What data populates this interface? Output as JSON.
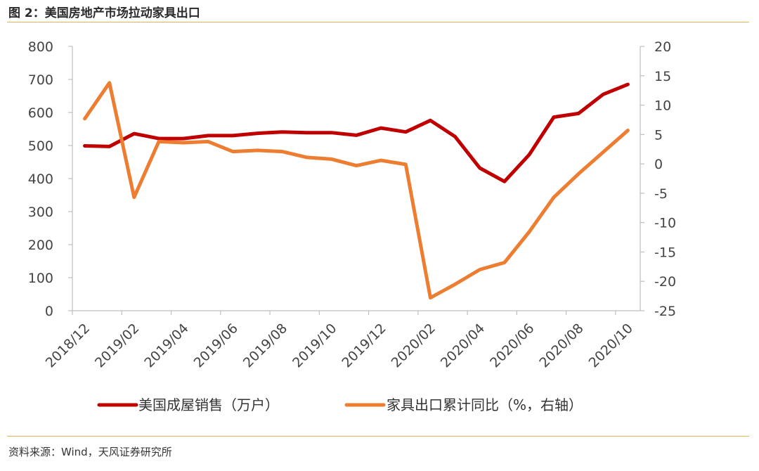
{
  "figure_title": "图 2：美国房地产市场拉动家具出口",
  "source": "资料来源：Wind，天风证券研究所",
  "colors": {
    "series1": "#c00000",
    "series2": "#ed7d31",
    "rule": "#e3b35a"
  },
  "chart_data": {
    "type": "line",
    "title": "图 2：美国房地产市场拉动家具出口",
    "x": [
      "2018/12",
      "2019/01",
      "2019/02",
      "2019/03",
      "2019/04",
      "2019/05",
      "2019/06",
      "2019/07",
      "2019/08",
      "2019/09",
      "2019/10",
      "2019/11",
      "2019/12",
      "2020/01",
      "2020/02",
      "2020/03",
      "2020/04",
      "2020/05",
      "2020/06",
      "2020/07",
      "2020/08",
      "2020/09",
      "2020/10"
    ],
    "x_tick_labels": [
      "2018/12",
      "2019/02",
      "2019/04",
      "2019/06",
      "2019/08",
      "2019/10",
      "2019/12",
      "2020/02",
      "2020/04",
      "2020/06",
      "2020/08",
      "2020/10"
    ],
    "y_left": {
      "range": [
        0,
        800
      ],
      "ticks": [
        "800",
        "700",
        "600",
        "500",
        "400",
        "300",
        "200",
        "100",
        "0"
      ]
    },
    "y_right": {
      "range": [
        -25,
        20
      ],
      "ticks": [
        "20",
        "15",
        "10",
        "5",
        "0",
        "-5",
        "-10",
        "-15",
        "-20",
        "-25"
      ]
    },
    "grid": false,
    "legend_position": "bottom",
    "series": [
      {
        "name": "美国成屋销售（万户）",
        "axis": "left",
        "values": [
          499,
          497,
          536,
          521,
          521,
          530,
          530,
          537,
          541,
          539,
          539,
          531,
          553,
          541,
          576,
          527,
          432,
          391,
          472,
          586,
          597,
          655,
          685
        ]
      },
      {
        "name": "家具出口累计同比（%，右轴）",
        "axis": "right",
        "values": [
          7.7,
          13.8,
          -5.7,
          3.8,
          3.6,
          3.8,
          2.1,
          2.3,
          2.1,
          1.1,
          0.8,
          -0.3,
          0.6,
          -0.1,
          -22.8,
          -20.5,
          -18.0,
          -16.8,
          -11.6,
          -5.7,
          -1.7,
          2.0,
          5.7
        ]
      }
    ]
  }
}
